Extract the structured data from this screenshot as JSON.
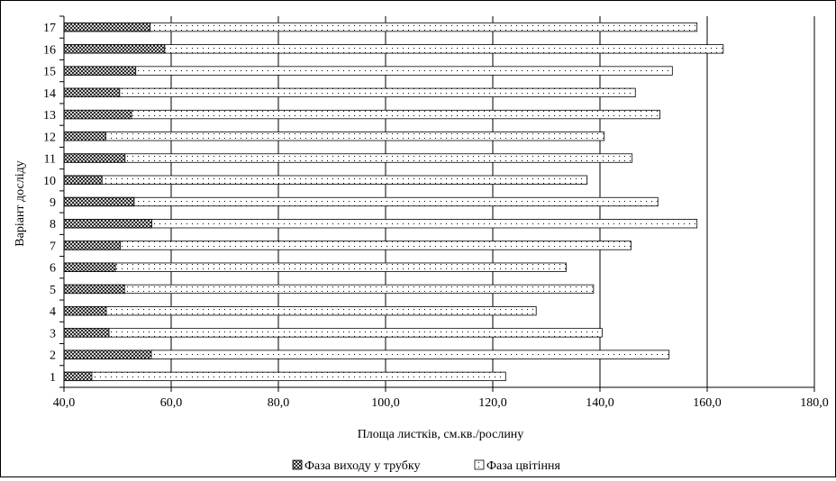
{
  "chart_data": {
    "type": "bar",
    "orientation": "horizontal",
    "stacked": false,
    "title": "",
    "xlabel": "Площа листків, см.кв./рослину",
    "ylabel": "Варіант досліду",
    "xlim": [
      40,
      180
    ],
    "x_ticks": [
      "40,0",
      "60,0",
      "80,0",
      "100,0",
      "120,0",
      "140,0",
      "160,0",
      "180,0"
    ],
    "x_tick_values": [
      40,
      60,
      80,
      100,
      120,
      140,
      160,
      180
    ],
    "categories": [
      "1",
      "2",
      "3",
      "4",
      "5",
      "6",
      "7",
      "8",
      "9",
      "10",
      "11",
      "12",
      "13",
      "14",
      "15",
      "16",
      "17"
    ],
    "grid": "vertical major gridlines",
    "legend_position": "bottom",
    "series": [
      {
        "name": "Фаза виходу у трубку",
        "pattern": "crosshatch",
        "values": [
          45.2,
          56.3,
          48.4,
          47.9,
          51.3,
          49.6,
          50.5,
          56.4,
          53.1,
          47.1,
          51.4,
          47.8,
          52.6,
          50.4,
          53.4,
          58.8,
          56.1
        ]
      },
      {
        "name": "Фаза цвітіння",
        "pattern": "dotted",
        "values": [
          122.4,
          152.9,
          140.4,
          128.1,
          138.8,
          133.7,
          145.8,
          158.1,
          150.8,
          137.6,
          146.0,
          140.8,
          151.2,
          146.6,
          153.5,
          163.0,
          158.1
        ]
      }
    ]
  }
}
